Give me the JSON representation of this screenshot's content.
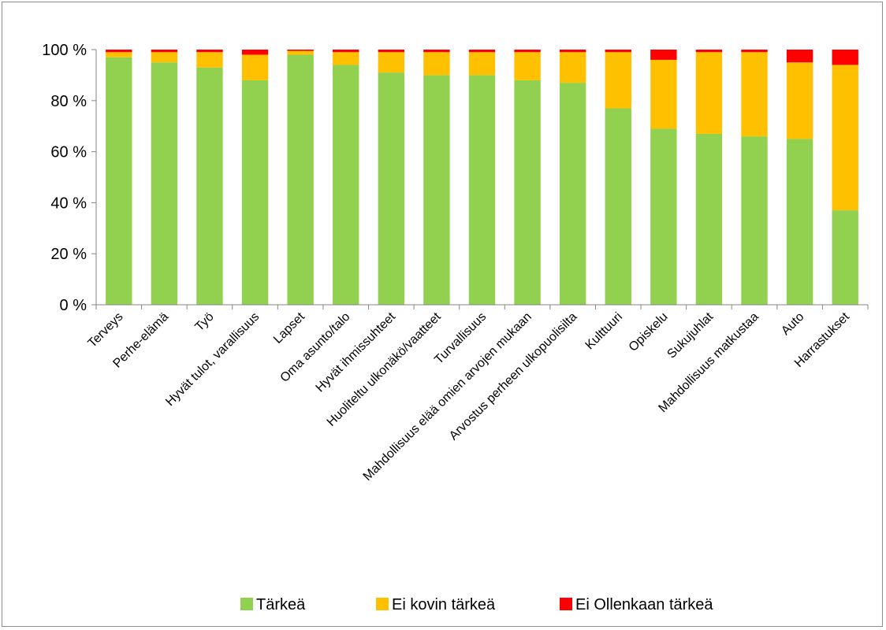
{
  "chart_data": {
    "type": "bar",
    "stacked": true,
    "percent_stacked": true,
    "categories": [
      "Terveys",
      "Perhe-elämä",
      "Työ",
      "Hyvät tulot, varallisuus",
      "Lapset",
      "Oma asunto/talo",
      "Hyvät ihmissuhteet",
      "Huoliteltu ulkonäkö/vaatteet",
      "Turvallisuus",
      "Mahdollisuus elää omien arvojen mukaan",
      "Arvostus perheen ulkopuolisilta",
      "Kulttuuri",
      "Opiskelu",
      "Sukujuhlat",
      "Mahdollisuus matkustaa",
      "Auto",
      "Harrastukset"
    ],
    "series": [
      {
        "name": "Tärkeä",
        "color": "#92d050",
        "values": [
          97,
          95,
          93,
          88,
          98,
          94,
          91,
          90,
          90,
          88,
          87,
          77,
          69,
          67,
          66,
          65,
          37
        ]
      },
      {
        "name": "Ei kovin tärkeä",
        "color": "#ffc000",
        "values": [
          2,
          4,
          6,
          10,
          1.5,
          5,
          8,
          9,
          9,
          11,
          12,
          22,
          27,
          32,
          33,
          30,
          57
        ]
      },
      {
        "name": "Ei Ollenkaan tärkeä",
        "color": "#ff0000",
        "values": [
          1,
          1,
          1,
          2,
          0.5,
          1,
          1,
          1,
          1,
          1,
          1,
          1,
          4,
          1,
          1,
          5,
          6
        ]
      }
    ],
    "y_ticks": [
      "0 %",
      "20 %",
      "40 %",
      "60 %",
      "80 %",
      "100 %"
    ],
    "ylim": [
      0,
      100
    ],
    "grid": false,
    "legend_position": "bottom"
  }
}
